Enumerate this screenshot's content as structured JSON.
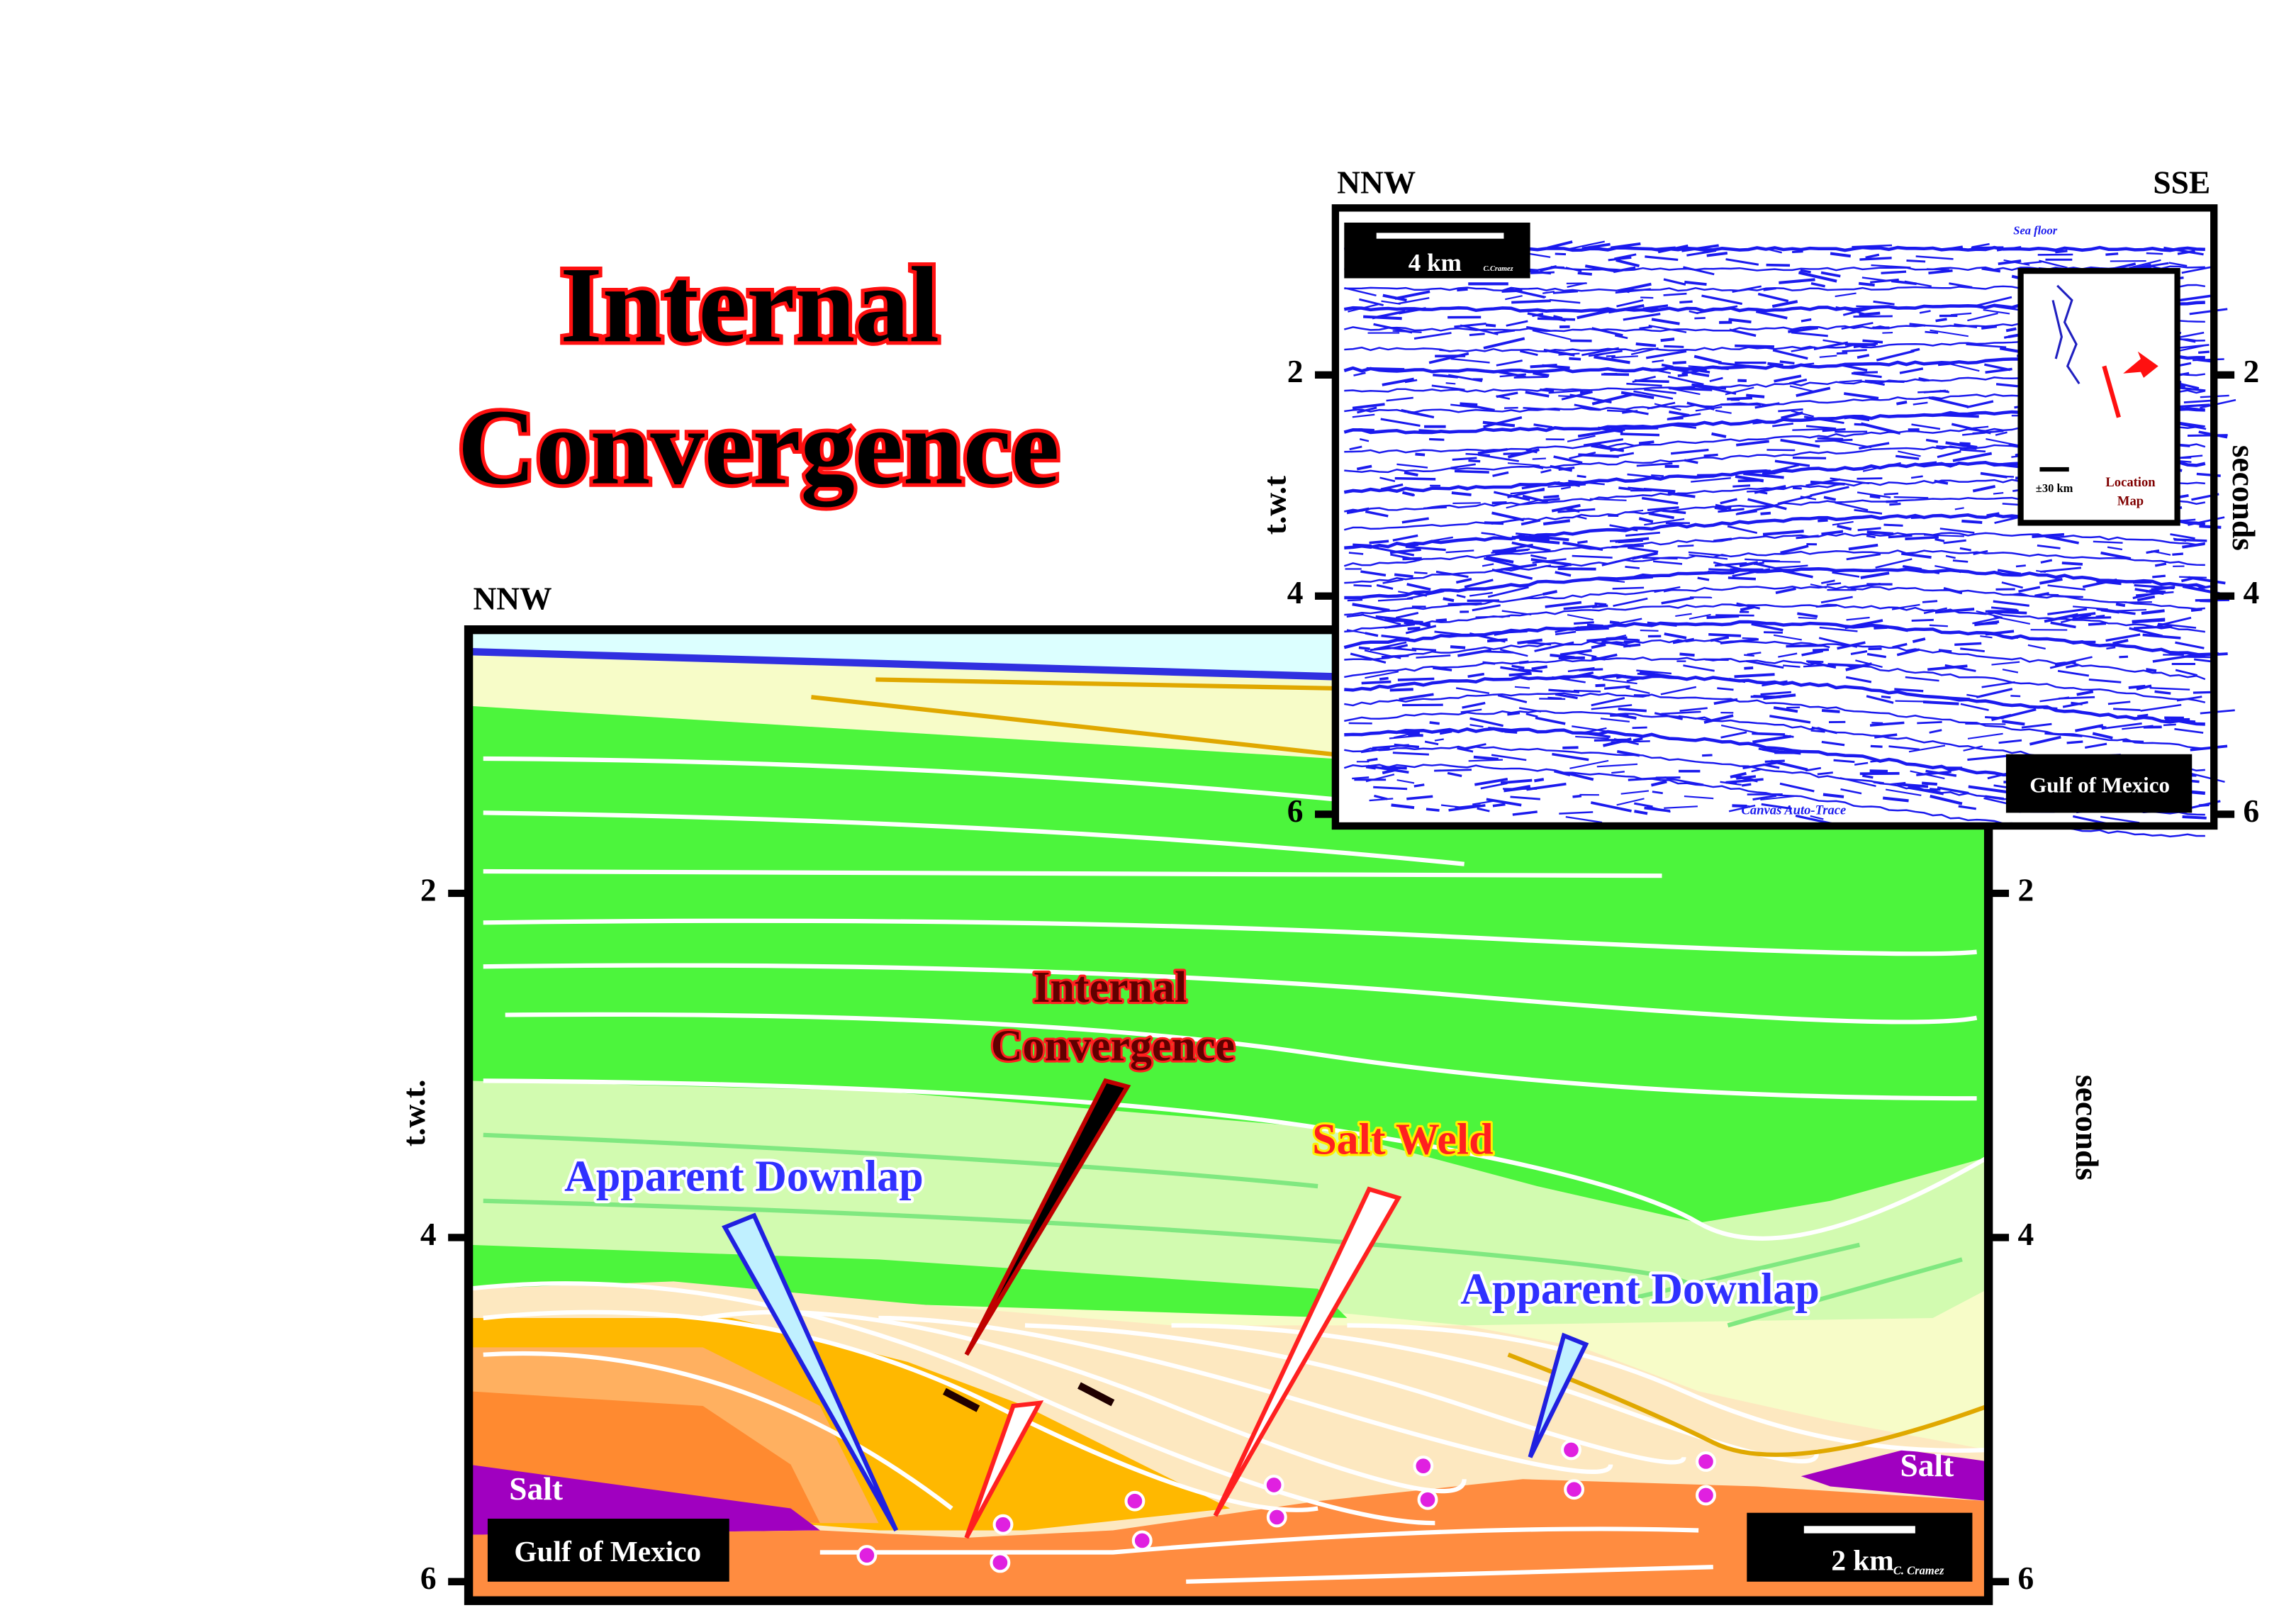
{
  "title": [
    "Internal",
    "Convergence"
  ],
  "interpretation": {
    "direction": "NNW",
    "y_label_left": "t.w.t.",
    "y_label_right": "seconds",
    "ticks": [
      2,
      4,
      6
    ],
    "annotations": {
      "internal_convergence": [
        "Internal",
        "Convergence"
      ],
      "salt_weld": "Salt Weld",
      "apparent_downlap_left": "Apparent Downlap",
      "apparent_downlap_right": "Apparent Downlap"
    },
    "salt_labels": [
      "Salt",
      "Salt"
    ],
    "region": "Gulf of Mexico",
    "scale": "2 km",
    "credit": "C. Cramez"
  },
  "seismic": {
    "direction_left": "NNW",
    "direction_right": "SSE",
    "y_label_left": "t.w.t",
    "y_label_right": "seconds",
    "ticks": [
      2,
      4,
      6
    ],
    "scale": "4 km",
    "credit": "C.Cramez",
    "sea_floor": "Sea floor",
    "region": "Gulf of Mexico",
    "footer": "Canvas Auto-Trace",
    "inset": {
      "scale": "±30 km",
      "label": [
        "Location",
        "Map"
      ]
    }
  }
}
